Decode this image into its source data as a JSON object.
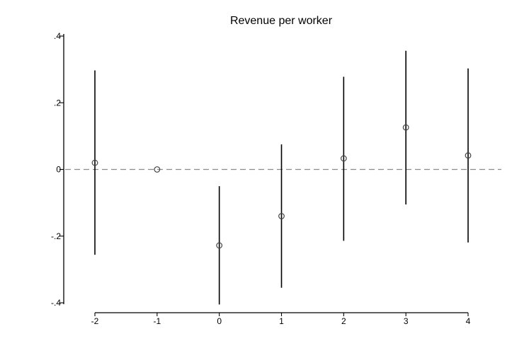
{
  "chart_data": {
    "type": "scatter",
    "title": "Revenue per worker",
    "xlabel": "",
    "ylabel": "",
    "x": [
      -2,
      -1,
      0,
      1,
      2,
      3,
      4
    ],
    "x_tick_labels": [
      "-2",
      "-1",
      "0",
      "1",
      "2",
      "3",
      "4"
    ],
    "y_tick_values": [
      0.4,
      0.2,
      0,
      -0.2,
      -0.4
    ],
    "y_tick_labels": [
      ".4",
      ".2",
      "0",
      "-.2",
      "-.4"
    ],
    "ylim": [
      -0.4,
      0.4
    ],
    "xlim": [
      -2,
      4
    ],
    "series": [
      {
        "values": [
          0.02,
          0.0,
          -0.228,
          -0.14,
          0.033,
          0.126,
          0.042
        ],
        "ci_low": [
          -0.256,
          0.0,
          -0.405,
          -0.355,
          -0.214,
          -0.105,
          -0.219
        ],
        "ci_high": [
          0.297,
          0.0,
          -0.05,
          0.075,
          0.278,
          0.356,
          0.303
        ]
      }
    ],
    "reference_line": {
      "y": 0,
      "style": "dashed"
    },
    "grid": false,
    "marker": "hollow-circle",
    "colors": {
      "ci": "#000000",
      "marker": "#444444",
      "reference": "#8c8c8c"
    }
  }
}
